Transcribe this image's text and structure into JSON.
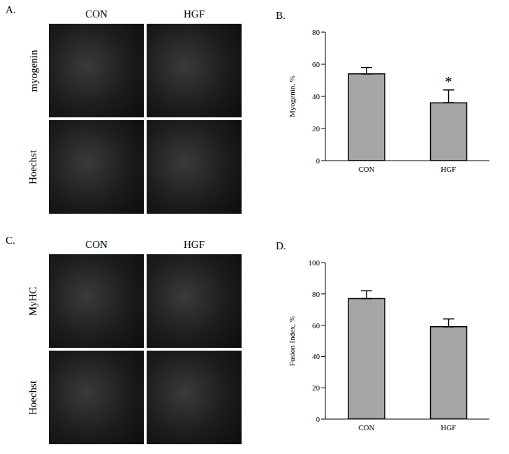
{
  "chart_data": [
    {
      "type": "bar",
      "title": "B.",
      "y_label": "Myogenin, %",
      "categories": [
        "CON",
        "HGF"
      ],
      "values": [
        54,
        36
      ],
      "errors": [
        4,
        8
      ],
      "color": "#a6a6a6",
      "ylim": [
        0,
        80
      ],
      "yticks": [
        0,
        20,
        40,
        60,
        80
      ],
      "annotations": [
        {
          "category": "HGF",
          "text": "*"
        }
      ]
    },
    {
      "type": "bar",
      "title": "D.",
      "y_label": "Fusion Index, %",
      "categories": [
        "CON",
        "HGF"
      ],
      "values": [
        77,
        59
      ],
      "errors": [
        5,
        5
      ],
      "color": "#a6a6a6",
      "ylim": [
        0,
        100
      ],
      "yticks": [
        0,
        20,
        40,
        60,
        80,
        100
      ]
    }
  ],
  "image_panels": [
    {
      "title": "A.",
      "columns": [
        "CON",
        "HGF"
      ],
      "rows": [
        "myogenin",
        "Hoechst"
      ]
    },
    {
      "title": "C.",
      "columns": [
        "CON",
        "HGF"
      ],
      "rows": [
        "MyHC",
        "Hoechst"
      ]
    }
  ]
}
